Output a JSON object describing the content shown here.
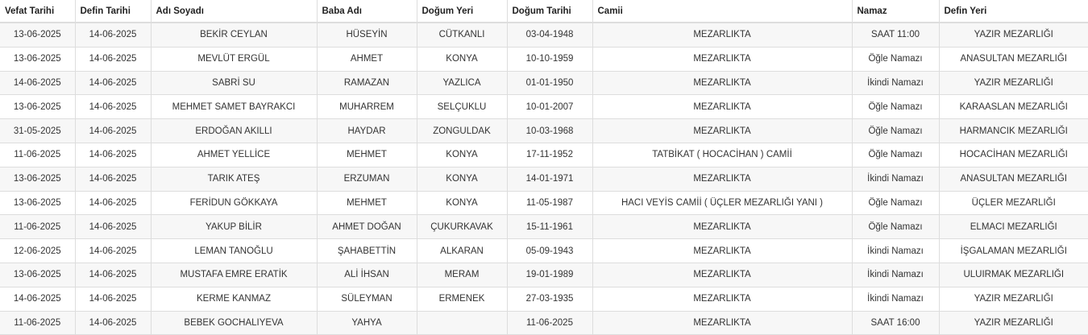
{
  "table": {
    "headers": [
      "Vefat Tarihi",
      "Defin Tarihi",
      "Adı Soyadı",
      "Baba Adı",
      "Doğum Yeri",
      "Doğum Tarihi",
      "Camii",
      "Namaz",
      "Defin Yeri"
    ],
    "rows": [
      [
        "13-06-2025",
        "14-06-2025",
        "BEKİR CEYLAN",
        "HÜSEYİN",
        "CÜTKANLI",
        "03-04-1948",
        "MEZARLIKTA",
        "SAAT 11:00",
        "YAZIR MEZARLIĞI"
      ],
      [
        "13-06-2025",
        "14-06-2025",
        "MEVLÜT ERGÜL",
        "AHMET",
        "KONYA",
        "10-10-1959",
        "MEZARLIKTA",
        "Öğle Namazı",
        "ANASULTAN MEZARLIĞI"
      ],
      [
        "14-06-2025",
        "14-06-2025",
        "SABRİ SU",
        "RAMAZAN",
        "YAZLICA",
        "01-01-1950",
        "MEZARLIKTA",
        "İkindi Namazı",
        "YAZIR MEZARLIĞI"
      ],
      [
        "13-06-2025",
        "14-06-2025",
        "MEHMET SAMET BAYRAKCI",
        "MUHARREM",
        "SELÇUKLU",
        "10-01-2007",
        "MEZARLIKTA",
        "Öğle Namazı",
        "KARAASLAN MEZARLIĞI"
      ],
      [
        "31-05-2025",
        "14-06-2025",
        "ERDOĞAN AKILLI",
        "HAYDAR",
        "ZONGULDAK",
        "10-03-1968",
        "MEZARLIKTA",
        "Öğle Namazı",
        "HARMANCIK MEZARLIĞI"
      ],
      [
        "11-06-2025",
        "14-06-2025",
        "AHMET YELLİCE",
        "MEHMET",
        "KONYA",
        "17-11-1952",
        "TATBİKAT ( HOCACİHAN ) CAMİİ",
        "Öğle Namazı",
        "HOCACİHAN MEZARLIĞI"
      ],
      [
        "13-06-2025",
        "14-06-2025",
        "TARIK ATEŞ",
        "ERZUMAN",
        "KONYA",
        "14-01-1971",
        "MEZARLIKTA",
        "İkindi Namazı",
        "ANASULTAN MEZARLIĞI"
      ],
      [
        "13-06-2025",
        "14-06-2025",
        "FERİDUN GÖKKAYA",
        "MEHMET",
        "KONYA",
        "11-05-1987",
        "HACI VEYİS CAMİİ ( ÜÇLER MEZARLIĞI YANI )",
        "Öğle Namazı",
        "ÜÇLER MEZARLIĞI"
      ],
      [
        "11-06-2025",
        "14-06-2025",
        "YAKUP BİLİR",
        "AHMET DOĞAN",
        "ÇUKURKAVAK",
        "15-11-1961",
        "MEZARLIKTA",
        "Öğle Namazı",
        "ELMACI MEZARLIĞI"
      ],
      [
        "12-06-2025",
        "14-06-2025",
        "LEMAN TANOĞLU",
        "ŞAHABETTİN",
        "ALKARAN",
        "05-09-1943",
        "MEZARLIKTA",
        "İkindi Namazı",
        "İŞGALAMAN MEZARLIĞI"
      ],
      [
        "13-06-2025",
        "14-06-2025",
        "MUSTAFA EMRE ERATİK",
        "ALİ İHSAN",
        "MERAM",
        "19-01-1989",
        "MEZARLIKTA",
        "İkindi Namazı",
        "ULUIRMAK MEZARLIĞI"
      ],
      [
        "14-06-2025",
        "14-06-2025",
        "KERME KANMAZ",
        "SÜLEYMAN",
        "ERMENEK",
        "27-03-1935",
        "MEZARLIKTA",
        "İkindi Namazı",
        "YAZIR MEZARLIĞI"
      ],
      [
        "11-06-2025",
        "14-06-2025",
        "BEBEK GOCHALIYEVA",
        "YAHYA",
        "",
        "11-06-2025",
        "MEZARLIKTA",
        "SAAT 16:00",
        "YAZIR MEZARLIĞI"
      ]
    ]
  }
}
